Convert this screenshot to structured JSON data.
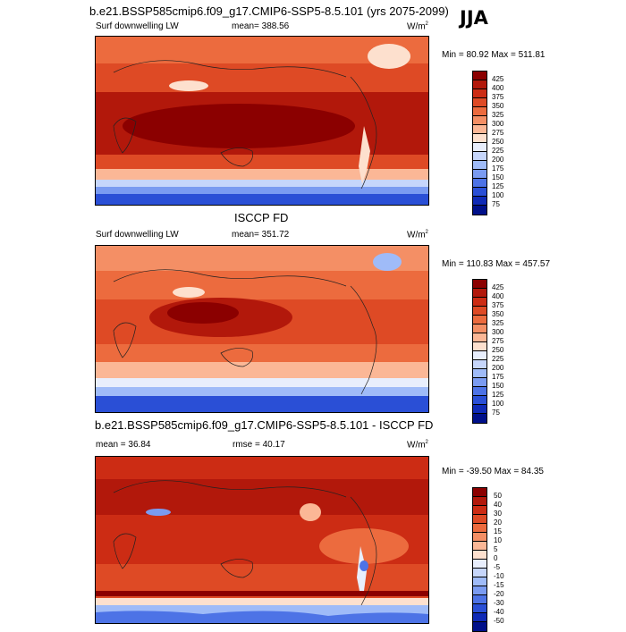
{
  "season": "JJA",
  "panels": [
    {
      "title": "b.e21.BSSP585cmip6.f09_g17.CMIP6-SSP5-8.5.101 (yrs 2075-2099)",
      "left_label": "Surf downwelling LW",
      "mid_label": "mean= 388.56",
      "unit": "W/m",
      "unit_sup": "2",
      "minmax": "Min =  80.92 Max = 511.81",
      "levels": [
        "425",
        "400",
        "375",
        "350",
        "325",
        "300",
        "275",
        "250",
        "225",
        "200",
        "175",
        "150",
        "125",
        "100",
        "75"
      ],
      "colors": [
        "#8b0000",
        "#b2180b",
        "#cc2c14",
        "#de4a25",
        "#ec6b3e",
        "#f48f65",
        "#fbb796",
        "#fde0ce",
        "#e8eefc",
        "#c6d6fb",
        "#9fbbf8",
        "#7a9bf1",
        "#4d73e6",
        "#2a4fd6",
        "#0f2ab6",
        "#00108a"
      ]
    },
    {
      "title": "ISCCP FD",
      "left_label": "Surf downwelling LW",
      "mid_label": "mean= 351.72",
      "unit": "W/m",
      "unit_sup": "2",
      "minmax": "Min = 110.83 Max = 457.57",
      "levels": [
        "425",
        "400",
        "375",
        "350",
        "325",
        "300",
        "275",
        "250",
        "225",
        "200",
        "175",
        "150",
        "125",
        "100",
        "75"
      ],
      "colors": [
        "#8b0000",
        "#b2180b",
        "#cc2c14",
        "#de4a25",
        "#ec6b3e",
        "#f48f65",
        "#fbb796",
        "#fde0ce",
        "#e8eefc",
        "#c6d6fb",
        "#9fbbf8",
        "#7a9bf1",
        "#4d73e6",
        "#2a4fd6",
        "#0f2ab6",
        "#00108a"
      ]
    },
    {
      "title": "b.e21.BSSP585cmip6.f09_g17.CMIP6-SSP5-8.5.101 - ISCCP FD",
      "left_label": "mean =  36.84",
      "mid_label": "rmse =  40.17",
      "unit": "W/m",
      "unit_sup": "2",
      "minmax": "Min = -39.50 Max =  84.35",
      "levels": [
        "50",
        "40",
        "30",
        "20",
        "15",
        "10",
        "5",
        "0",
        "-5",
        "-10",
        "-15",
        "-20",
        "-30",
        "-40",
        "-50"
      ],
      "colors": [
        "#8b0000",
        "#b2180b",
        "#cc2c14",
        "#de4a25",
        "#ec6b3e",
        "#f48f65",
        "#fbb796",
        "#fde0ce",
        "#e8eefc",
        "#c6d6fb",
        "#9fbbf8",
        "#7a9bf1",
        "#4d73e6",
        "#2a4fd6",
        "#0f2ab6",
        "#00108a"
      ]
    }
  ]
}
